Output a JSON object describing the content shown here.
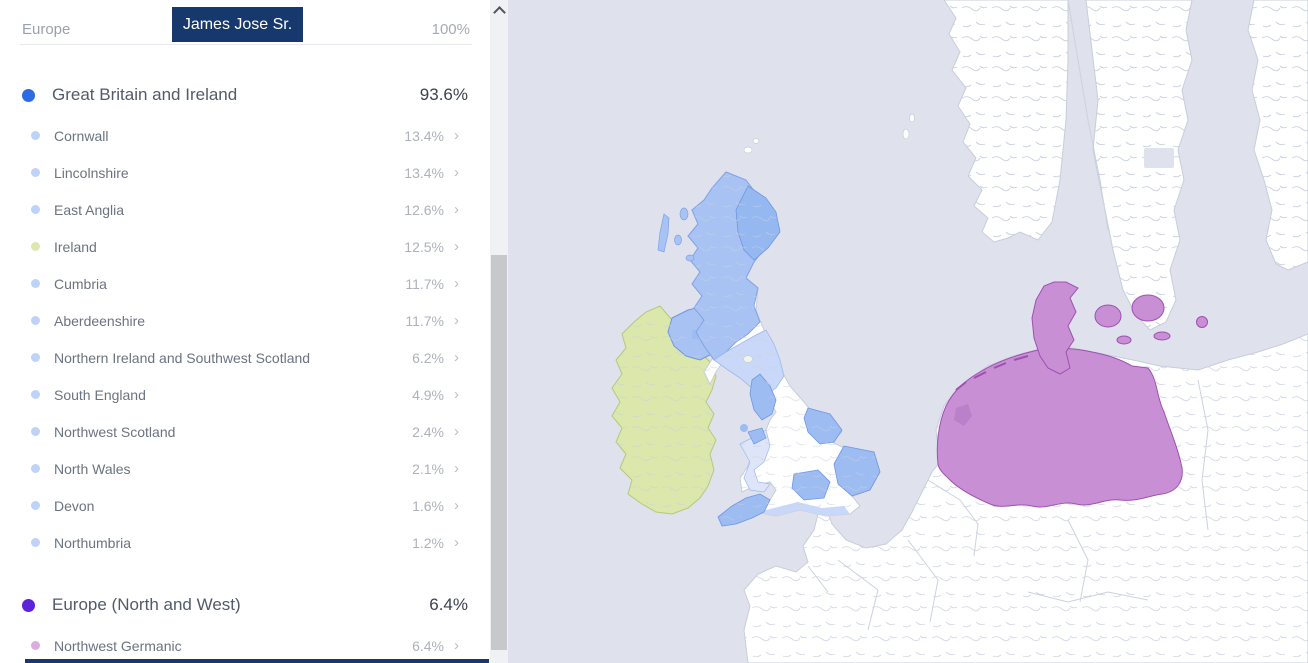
{
  "panel": {
    "header": {
      "region_label": "Europe",
      "person_name": "James Jose Sr.",
      "total": "100%"
    },
    "groups": [
      {
        "label": "Great Britain and Ireland",
        "value": "93.6%",
        "dot_color": "#2d6ae3",
        "items": [
          {
            "label": "Cornwall",
            "value": "13.4%",
            "dot_color": "#bfd2f8"
          },
          {
            "label": "Lincolnshire",
            "value": "13.4%",
            "dot_color": "#bfd2f8"
          },
          {
            "label": "East Anglia",
            "value": "12.6%",
            "dot_color": "#bfd2f8"
          },
          {
            "label": "Ireland",
            "value": "12.5%",
            "dot_color": "#dde8ae"
          },
          {
            "label": "Cumbria",
            "value": "11.7%",
            "dot_color": "#bfd2f8"
          },
          {
            "label": "Aberdeenshire",
            "value": "11.7%",
            "dot_color": "#bfd2f8"
          },
          {
            "label": "Northern Ireland and Southwest Scotland",
            "value": "6.2%",
            "dot_color": "#bfd2f8"
          },
          {
            "label": "South England",
            "value": "4.9%",
            "dot_color": "#bfd2f8"
          },
          {
            "label": "Northwest Scotland",
            "value": "2.4%",
            "dot_color": "#bfd2f8"
          },
          {
            "label": "North Wales",
            "value": "2.1%",
            "dot_color": "#bfd2f8"
          },
          {
            "label": "Devon",
            "value": "1.6%",
            "dot_color": "#bfd2f8"
          },
          {
            "label": "Northumbria",
            "value": "1.2%",
            "dot_color": "#bfd2f8"
          }
        ]
      },
      {
        "label": "Europe (North and West)",
        "value": "6.4%",
        "dot_color": "#5d22da",
        "items": [
          {
            "label": "Northwest Germanic",
            "value": "6.4%",
            "dot_color": "#dcaede"
          }
        ]
      }
    ],
    "chevron_glyph": "›"
  },
  "map": {
    "colors": {
      "ocean": "#dfe2ec",
      "land": "#ffffff",
      "coast": "#c7cdda",
      "inner_border": "#ccd2de",
      "squiggle": "#c9d0de",
      "scotland": "#a8c3f3",
      "scotland_border": "#7fa2e6",
      "aberdeenshire": "#96b8f0",
      "medium_blue": "#9cbcf2",
      "medium_blue_border": "#6f96e2",
      "light_blue": "#c9d8f8",
      "light_blue_border": "#9db8ee",
      "wales_light": "#dfe5f9",
      "ireland_green": "#dbe7ab",
      "ireland_border": "#b5c87c",
      "germanic_purple": "#c98fd5",
      "germanic_purple_border": "#9d50b2",
      "lake_purple": "#b77fc8"
    },
    "highlighted_regions": [
      "Scotland (Great Britain and Ireland)",
      "Ireland",
      "Northern Ireland",
      "Cumbria",
      "Lincolnshire",
      "East Anglia",
      "Cornwall and Devon",
      "South England coast",
      "Wales",
      "Northwest Germanic (Netherlands, Northwest Germany, Denmark)"
    ]
  }
}
